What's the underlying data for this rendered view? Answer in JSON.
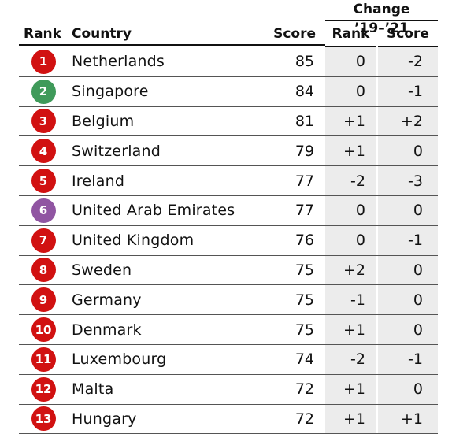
{
  "header": {
    "group_title": "Change ’19–’21",
    "col_rank": "Rank",
    "col_country": "Country",
    "col_score": "Score",
    "col_change_rank": "Rank",
    "col_change_score": "Score"
  },
  "colors": {
    "red": "#d11111",
    "green": "#3f9a5a",
    "purple": "#9055a2"
  },
  "rows": [
    {
      "rank": "1",
      "country": "Netherlands",
      "score": "85",
      "change_rank": "0",
      "change_score": "-2",
      "badge_color": "#d11111"
    },
    {
      "rank": "2",
      "country": "Singapore",
      "score": "84",
      "change_rank": "0",
      "change_score": "-1",
      "badge_color": "#3f9a5a"
    },
    {
      "rank": "3",
      "country": "Belgium",
      "score": "81",
      "change_rank": "+1",
      "change_score": "+2",
      "badge_color": "#d11111"
    },
    {
      "rank": "4",
      "country": "Switzerland",
      "score": "79",
      "change_rank": "+1",
      "change_score": "0",
      "badge_color": "#d11111"
    },
    {
      "rank": "5",
      "country": "Ireland",
      "score": "77",
      "change_rank": "-2",
      "change_score": "-3",
      "badge_color": "#d11111"
    },
    {
      "rank": "6",
      "country": "United Arab Emirates",
      "score": "77",
      "change_rank": "0",
      "change_score": "0",
      "badge_color": "#9055a2"
    },
    {
      "rank": "7",
      "country": "United Kingdom",
      "score": "76",
      "change_rank": "0",
      "change_score": "-1",
      "badge_color": "#d11111"
    },
    {
      "rank": "8",
      "country": "Sweden",
      "score": "75",
      "change_rank": "+2",
      "change_score": "0",
      "badge_color": "#d11111"
    },
    {
      "rank": "9",
      "country": "Germany",
      "score": "75",
      "change_rank": "-1",
      "change_score": "0",
      "badge_color": "#d11111"
    },
    {
      "rank": "10",
      "country": "Denmark",
      "score": "75",
      "change_rank": "+1",
      "change_score": "0",
      "badge_color": "#d11111"
    },
    {
      "rank": "11",
      "country": "Luxembourg",
      "score": "74",
      "change_rank": "-2",
      "change_score": "-1",
      "badge_color": "#d11111"
    },
    {
      "rank": "12",
      "country": "Malta",
      "score": "72",
      "change_rank": "+1",
      "change_score": "0",
      "badge_color": "#d11111"
    },
    {
      "rank": "13",
      "country": "Hungary",
      "score": "72",
      "change_rank": "+1",
      "change_score": "+1",
      "badge_color": "#d11111"
    }
  ]
}
